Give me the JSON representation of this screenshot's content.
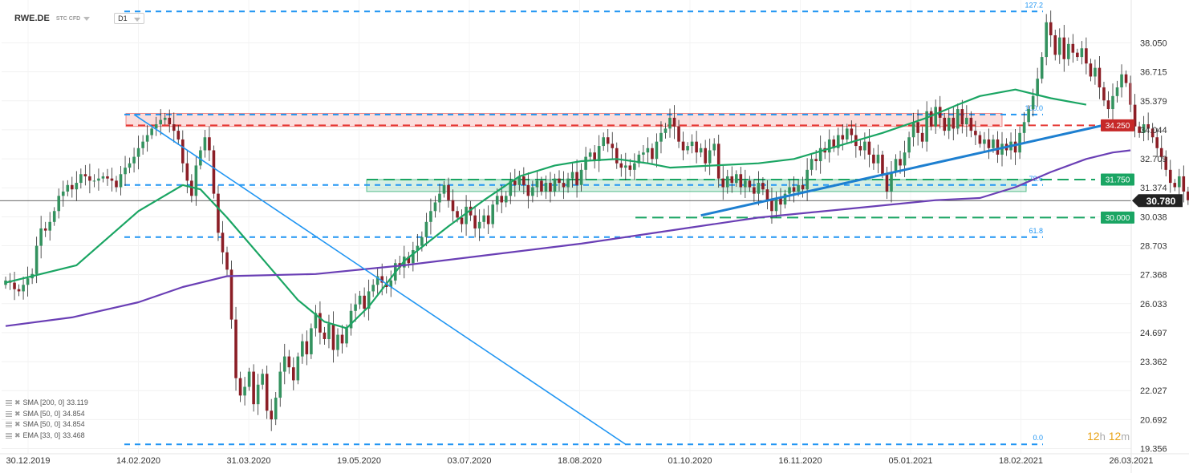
{
  "header": {
    "symbol": "RWE.DE",
    "subtitle": "STC CFD",
    "timeframe": "D1"
  },
  "legend": [
    {
      "label": "SMA [200, 0]",
      "value": "33.119"
    },
    {
      "label": "SMA [50, 0]",
      "value": "34.854"
    },
    {
      "label": "SMA [50, 0]",
      "value": "34.854"
    },
    {
      "label": "EMA [33, 0]",
      "value": "33.468"
    }
  ],
  "clock": {
    "h": "12",
    "h_unit": "h",
    "m": "12",
    "m_unit": "m"
  },
  "colors": {
    "up": "#34925f",
    "down": "#8b1e26",
    "fib": "#2196f3",
    "trend": "#1d7fd0",
    "ema": "#1aa563",
    "sma200": "#6a3fb5",
    "resistance": "#e53935",
    "support": "#1aa563"
  },
  "chart_data": {
    "type": "candlestick",
    "y_range": [
      19.0,
      39.9
    ],
    "y_ticks": [
      "38.050",
      "36.715",
      "35.379",
      "34.044",
      "32.709",
      "31.374",
      "30.038",
      "28.703",
      "27.368",
      "26.033",
      "24.697",
      "23.362",
      "22.027",
      "20.692",
      "19.356"
    ],
    "x_tick_labels": [
      "30.12.2019",
      "14.02.2020",
      "31.03.2020",
      "19.05.2020",
      "03.07.2020",
      "18.08.2020",
      "01.10.2020",
      "16.11.2020",
      "05.01.2021",
      "18.02.2021",
      "26.03.2021"
    ],
    "current_price": "30.780",
    "price_tags": [
      {
        "label": "34.250",
        "value": 34.25,
        "color": "#c62828"
      },
      {
        "label": "31.750",
        "value": 31.75,
        "color": "#1aa563"
      },
      {
        "label": "30.000",
        "value": 30.0,
        "color": "#1aa563"
      }
    ],
    "fib_levels": [
      {
        "label": "127.2",
        "value": 39.5
      },
      {
        "label": "100.0",
        "value": 34.75
      },
      {
        "label": "78.6",
        "value": 31.5
      },
      {
        "label": "61.8",
        "value": 29.1
      },
      {
        "label": "0.0",
        "value": 19.55
      }
    ],
    "zones": [
      {
        "kind": "resistance",
        "from": 34.2,
        "to": 34.8
      },
      {
        "kind": "support",
        "from": 31.2,
        "to": 31.75
      }
    ],
    "closes": [
      27.1,
      27.0,
      26.7,
      26.6,
      26.9,
      27.2,
      27.4,
      28.7,
      29.5,
      29.4,
      29.8,
      30.3,
      31.0,
      31.2,
      31.5,
      31.3,
      31.6,
      32.0,
      31.9,
      31.7,
      31.7,
      31.8,
      31.9,
      31.8,
      31.7,
      31.4,
      32.0,
      32.3,
      32.5,
      32.8,
      33.2,
      33.5,
      33.8,
      34.1,
      34.3,
      34.5,
      34.6,
      34.3,
      34.0,
      33.6,
      32.5,
      31.7,
      31.0,
      32.4,
      33.1,
      33.7,
      33.1,
      31.1,
      29.3,
      28.4,
      27.6,
      25.3,
      22.6,
      21.8,
      22.2,
      22.9,
      21.4,
      22.3,
      22.8,
      21.1,
      20.7,
      21.7,
      22.9,
      23.6,
      23.1,
      22.5,
      23.6,
      24.3,
      23.7,
      24.9,
      25.6,
      24.7,
      24.4,
      25.1,
      23.9,
      24.6,
      24.2,
      24.9,
      25.7,
      26.0,
      26.4,
      25.8,
      26.6,
      26.9,
      27.3,
      27.0,
      26.8,
      27.1,
      27.9,
      27.7,
      28.2,
      27.9,
      28.5,
      28.7,
      29.1,
      29.8,
      30.3,
      30.7,
      31.1,
      31.5,
      30.8,
      30.3,
      30.0,
      29.7,
      30.5,
      30.1,
      29.5,
      29.8,
      30.1,
      29.7,
      30.6,
      31.0,
      30.7,
      31.0,
      31.7,
      31.5,
      31.9,
      31.5,
      31.0,
      31.4,
      31.7,
      31.2,
      31.6,
      31.2,
      31.8,
      31.6,
      31.4,
      31.8,
      32.1,
      31.5,
      32.2,
      32.8,
      33.0,
      32.6,
      33.3,
      33.7,
      33.4,
      33.2,
      32.5,
      32.3,
      32.4,
      32.2,
      32.5,
      32.9,
      33.0,
      33.2,
      32.7,
      33.5,
      33.9,
      34.1,
      34.6,
      34.2,
      33.5,
      33.1,
      33.3,
      33.5,
      33.0,
      33.2,
      32.5,
      33.1,
      33.4,
      31.8,
      31.4,
      31.9,
      31.6,
      32.0,
      31.4,
      31.7,
      31.4,
      31.1,
      31.6,
      31.3,
      30.8,
      30.3,
      30.9,
      30.6,
      31.1,
      31.4,
      31.2,
      31.5,
      31.3,
      32.2,
      32.7,
      32.6,
      33.2,
      33.0,
      33.6,
      33.2,
      33.8,
      33.6,
      34.1,
      33.8,
      33.3,
      33.1,
      33.5,
      32.9,
      32.5,
      32.9,
      32.0,
      31.2,
      32.1,
      32.7,
      32.4,
      33.0,
      33.7,
      34.4,
      33.9,
      33.5,
      34.9,
      34.2,
      35.1,
      34.6,
      34.0,
      34.6,
      34.1,
      35.0,
      34.3,
      34.6,
      34.0,
      33.8,
      33.4,
      33.6,
      33.2,
      33.6,
      32.9,
      33.4,
      33.1,
      33.5,
      33.0,
      33.9,
      34.4,
      35.0,
      35.6,
      36.4,
      37.4,
      39.0,
      38.4,
      37.5,
      38.3,
      37.3,
      38.0,
      37.6,
      37.4,
      37.8,
      37.1,
      36.5,
      36.9,
      36.0,
      35.4,
      35.0,
      35.6,
      36.0,
      36.6,
      36.2,
      35.2,
      34.2,
      33.9,
      34.3,
      34.1,
      33.7,
      33.2,
      32.8,
      32.2,
      31.6,
      31.4,
      31.9,
      31.2,
      30.8
    ],
    "series": [
      {
        "name": "EMA [33, 0]",
        "color": "#1aa563",
        "points": [
          [
            0,
            27.0
          ],
          [
            16,
            27.8
          ],
          [
            30,
            30.3
          ],
          [
            40,
            31.5
          ],
          [
            44,
            31.3
          ],
          [
            50,
            30.0
          ],
          [
            58,
            28.1
          ],
          [
            66,
            26.2
          ],
          [
            72,
            25.2
          ],
          [
            77,
            24.9
          ],
          [
            82,
            25.9
          ],
          [
            90,
            28.0
          ],
          [
            100,
            29.6
          ],
          [
            108,
            30.8
          ],
          [
            116,
            31.9
          ],
          [
            124,
            32.4
          ],
          [
            130,
            32.6
          ],
          [
            138,
            32.7
          ],
          [
            145,
            32.5
          ],
          [
            150,
            32.3
          ],
          [
            160,
            32.4
          ],
          [
            170,
            32.5
          ],
          [
            178,
            32.7
          ],
          [
            188,
            33.3
          ],
          [
            198,
            33.9
          ],
          [
            208,
            34.6
          ],
          [
            215,
            35.2
          ],
          [
            220,
            35.6
          ],
          [
            228,
            35.9
          ],
          [
            236,
            35.5
          ],
          [
            244,
            35.2
          ]
        ]
      },
      {
        "name": "SMA [200, 0]",
        "color": "#6a3fb5",
        "points": [
          [
            0,
            25.0
          ],
          [
            15,
            25.4
          ],
          [
            30,
            26.1
          ],
          [
            40,
            26.8
          ],
          [
            50,
            27.3
          ],
          [
            70,
            27.4
          ],
          [
            90,
            27.8
          ],
          [
            110,
            28.3
          ],
          [
            130,
            28.8
          ],
          [
            150,
            29.4
          ],
          [
            170,
            30.0
          ],
          [
            190,
            30.4
          ],
          [
            210,
            30.8
          ],
          [
            220,
            30.9
          ],
          [
            228,
            31.4
          ],
          [
            236,
            32.1
          ],
          [
            244,
            32.7
          ],
          [
            250,
            33.0
          ],
          [
            254,
            33.1
          ]
        ]
      }
    ],
    "trendlines": [
      {
        "kind": "down-thin",
        "from": [
          29.0,
          34.75
        ],
        "to": [
          140.0,
          19.55
        ]
      },
      {
        "kind": "up-thick",
        "from": [
          157.0,
          30.1
        ],
        "to": [
          250.0,
          34.35
        ]
      }
    ]
  }
}
